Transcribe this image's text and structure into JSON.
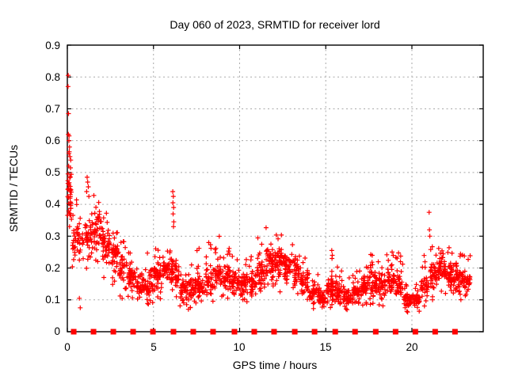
{
  "chart_data": {
    "type": "scatter",
    "title": "Day 060 of 2023, SRMTID for receiver lord",
    "xlabel": "GPS time / hours",
    "ylabel": "SRMTID / TECUs",
    "xlim": [
      0,
      24.14
    ],
    "ylim": [
      0,
      0.9
    ],
    "xticks": [
      0,
      5,
      10,
      15,
      20
    ],
    "yticks": [
      0,
      0.1,
      0.2,
      0.3,
      0.4,
      0.5,
      0.6,
      0.7,
      0.8,
      0.9
    ],
    "xtick_labels": [
      "0",
      "5",
      "10",
      "15",
      "20"
    ],
    "ytick_labels": [
      "0",
      "0.1",
      "0.2",
      "0.3",
      "0.4",
      "0.5",
      "0.6",
      "0.7",
      "0.8",
      "0.9"
    ],
    "grid": true,
    "legend": "none",
    "colors": {
      "data": "#ff0000",
      "frame": "#000000",
      "grid": "#a8a8a8",
      "background": "#ffffff"
    },
    "series": [
      {
        "name": "srmtid",
        "marker": "plus",
        "color": "#ff0000",
        "comment": "dense scatter ~2000 pts; bins = [x_start_hr, x_end_hr, y_min, y_max, y_mode, count] in TECUs",
        "bins": [
          [
            0.0,
            0.25,
            0.25,
            0.62,
            0.42,
            40
          ],
          [
            0.25,
            0.5,
            0.18,
            0.38,
            0.28,
            18
          ],
          [
            0.5,
            1.0,
            0.18,
            0.42,
            0.3,
            30
          ],
          [
            1.0,
            1.5,
            0.17,
            0.4,
            0.3,
            40
          ],
          [
            1.5,
            2.0,
            0.2,
            0.43,
            0.32,
            45
          ],
          [
            2.0,
            2.5,
            0.17,
            0.38,
            0.28,
            45
          ],
          [
            2.5,
            3.0,
            0.13,
            0.33,
            0.24,
            42
          ],
          [
            3.0,
            3.5,
            0.1,
            0.3,
            0.2,
            42
          ],
          [
            3.5,
            4.0,
            0.1,
            0.26,
            0.17,
            42
          ],
          [
            4.0,
            4.5,
            0.07,
            0.22,
            0.14,
            40
          ],
          [
            4.5,
            5.0,
            0.08,
            0.25,
            0.15,
            42
          ],
          [
            5.0,
            5.5,
            0.1,
            0.28,
            0.17,
            42
          ],
          [
            5.5,
            6.0,
            0.12,
            0.31,
            0.21,
            40
          ],
          [
            6.0,
            6.5,
            0.1,
            0.32,
            0.19,
            42
          ],
          [
            6.5,
            7.0,
            0.08,
            0.2,
            0.13,
            40
          ],
          [
            7.0,
            7.5,
            0.07,
            0.22,
            0.13,
            42
          ],
          [
            7.5,
            8.0,
            0.08,
            0.28,
            0.15,
            42
          ],
          [
            8.0,
            8.5,
            0.08,
            0.28,
            0.16,
            42
          ],
          [
            8.5,
            9.0,
            0.1,
            0.3,
            0.18,
            42
          ],
          [
            9.0,
            9.5,
            0.1,
            0.27,
            0.17,
            42
          ],
          [
            9.5,
            10.0,
            0.08,
            0.25,
            0.15,
            42
          ],
          [
            10.0,
            10.5,
            0.08,
            0.23,
            0.14,
            42
          ],
          [
            10.5,
            11.0,
            0.08,
            0.25,
            0.15,
            42
          ],
          [
            11.0,
            11.5,
            0.1,
            0.3,
            0.19,
            42
          ],
          [
            11.5,
            12.0,
            0.12,
            0.34,
            0.22,
            48
          ],
          [
            12.0,
            12.5,
            0.12,
            0.32,
            0.22,
            48
          ],
          [
            12.5,
            13.0,
            0.1,
            0.3,
            0.2,
            45
          ],
          [
            13.0,
            13.5,
            0.1,
            0.31,
            0.19,
            42
          ],
          [
            13.5,
            14.0,
            0.08,
            0.25,
            0.16,
            42
          ],
          [
            14.0,
            14.5,
            0.07,
            0.2,
            0.12,
            42
          ],
          [
            14.5,
            15.0,
            0.06,
            0.18,
            0.11,
            42
          ],
          [
            15.0,
            15.5,
            0.07,
            0.22,
            0.13,
            42
          ],
          [
            15.5,
            16.0,
            0.07,
            0.22,
            0.12,
            42
          ],
          [
            16.0,
            16.5,
            0.06,
            0.18,
            0.11,
            42
          ],
          [
            16.5,
            17.0,
            0.06,
            0.2,
            0.12,
            42
          ],
          [
            17.0,
            17.5,
            0.08,
            0.22,
            0.14,
            42
          ],
          [
            17.5,
            18.0,
            0.08,
            0.25,
            0.15,
            42
          ],
          [
            18.0,
            18.5,
            0.08,
            0.23,
            0.14,
            40
          ],
          [
            18.5,
            19.0,
            0.1,
            0.26,
            0.16,
            40
          ],
          [
            19.0,
            19.5,
            0.1,
            0.25,
            0.15,
            40
          ],
          [
            19.5,
            20.0,
            0.06,
            0.16,
            0.1,
            38
          ],
          [
            20.0,
            20.5,
            0.06,
            0.15,
            0.1,
            38
          ],
          [
            20.5,
            21.0,
            0.08,
            0.25,
            0.14,
            35
          ],
          [
            21.0,
            21.5,
            0.1,
            0.28,
            0.18,
            40
          ],
          [
            21.5,
            22.0,
            0.12,
            0.3,
            0.2,
            45
          ],
          [
            22.0,
            22.5,
            0.1,
            0.27,
            0.17,
            48
          ],
          [
            22.5,
            23.0,
            0.1,
            0.25,
            0.16,
            48
          ],
          [
            23.0,
            23.4,
            0.1,
            0.24,
            0.16,
            30
          ]
        ],
        "outliers": [
          [
            0.05,
            0.805
          ],
          [
            0.04,
            0.77
          ],
          [
            0.07,
            0.685
          ],
          [
            0.06,
            0.62
          ],
          [
            0.1,
            0.615
          ],
          [
            0.09,
            0.6
          ],
          [
            0.13,
            0.58
          ],
          [
            0.11,
            0.565
          ],
          [
            0.15,
            0.55
          ],
          [
            0.08,
            0.52
          ],
          [
            0.7,
            0.105
          ],
          [
            0.75,
            0.075
          ],
          [
            1.15,
            0.485
          ],
          [
            1.18,
            0.47
          ],
          [
            1.22,
            0.455
          ],
          [
            1.12,
            0.44
          ],
          [
            1.25,
            0.425
          ],
          [
            6.12,
            0.44
          ],
          [
            6.15,
            0.425
          ],
          [
            6.13,
            0.405
          ],
          [
            6.17,
            0.39
          ],
          [
            6.14,
            0.37
          ],
          [
            6.18,
            0.345
          ],
          [
            6.16,
            0.33
          ],
          [
            15.35,
            0.255
          ],
          [
            15.38,
            0.24
          ],
          [
            15.36,
            0.23
          ],
          [
            17.7,
            0.24
          ],
          [
            18.85,
            0.25
          ],
          [
            21.0,
            0.375
          ],
          [
            21.02,
            0.32
          ],
          [
            21.04,
            0.3
          ]
        ]
      },
      {
        "name": "baseline-markers",
        "marker": "filled-square",
        "color": "#ff0000",
        "y": 0,
        "x": [
          0.37,
          1.52,
          2.67,
          3.82,
          4.97,
          6.16,
          7.31,
          8.46,
          9.7,
          10.85,
          12.0,
          13.2,
          14.35,
          15.55,
          16.7,
          17.9,
          19.05,
          20.2,
          21.35,
          22.5
        ]
      }
    ]
  }
}
